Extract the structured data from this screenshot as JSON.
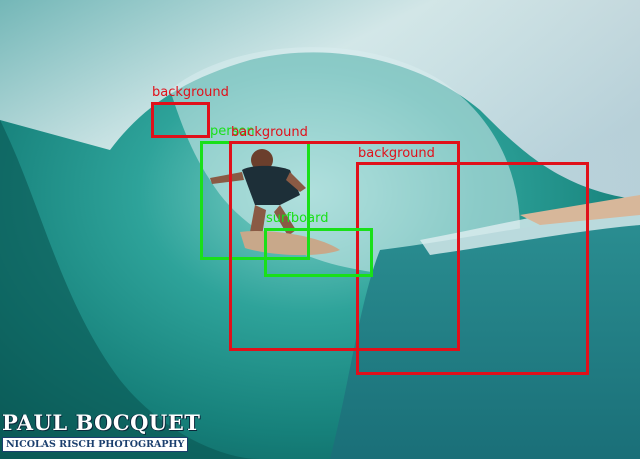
{
  "image": {
    "description_colors": {
      "wave_deep": "#0b5f5a",
      "wave_mid": "#1e8f86",
      "wave_light": "#8fd4cc",
      "foam": "#e9f3f4",
      "sky": "#dfe8ee",
      "sand": "#d7b79a"
    }
  },
  "detections": [
    {
      "label": "background",
      "color": "#e0101a"
    },
    {
      "label": "person",
      "color": "#19e019"
    },
    {
      "label": "background",
      "color": "#e0101a"
    },
    {
      "label": "background",
      "color": "#e0101a"
    },
    {
      "label": "surfboard",
      "color": "#19e019"
    }
  ],
  "watermark": {
    "name": "PAUL BOCQUET",
    "subtitle": "NICOLAS RISCH PHOTOGRAPHY"
  }
}
